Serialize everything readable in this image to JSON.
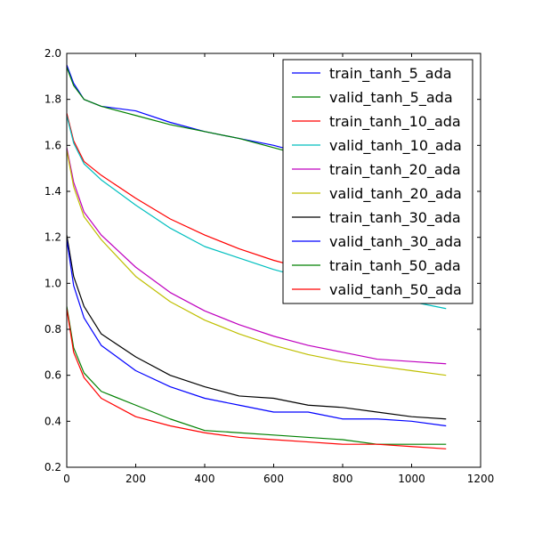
{
  "chart_data": {
    "type": "line",
    "title": "",
    "xlabel": "",
    "ylabel": "",
    "xlim": [
      0,
      1200
    ],
    "ylim": [
      0.2,
      2.0
    ],
    "xticks": [
      0,
      200,
      400,
      600,
      800,
      1000,
      1200
    ],
    "yticks": [
      0.2,
      0.4,
      0.6,
      0.8,
      1.0,
      1.2,
      1.4,
      1.6,
      1.8,
      2.0
    ],
    "xtick_labels": [
      "0",
      "200",
      "400",
      "600",
      "800",
      "1000",
      "1200"
    ],
    "ytick_labels": [
      "0.2",
      "0.4",
      "0.6",
      "0.8",
      "1.0",
      "1.2",
      "1.4",
      "1.6",
      "1.8",
      "2.0"
    ],
    "grid": false,
    "legend_position": "top-right",
    "x": [
      0,
      20,
      50,
      100,
      200,
      300,
      400,
      500,
      600,
      700,
      800,
      900,
      1000,
      1100
    ],
    "series": [
      {
        "name": "train_tanh_5_ada",
        "color": "#0000ff",
        "values": [
          1.95,
          1.87,
          1.8,
          1.77,
          1.75,
          1.7,
          1.66,
          1.63,
          1.6,
          1.56,
          1.52,
          1.49,
          1.46,
          1.44
        ]
      },
      {
        "name": "valid_tanh_5_ada",
        "color": "#008000",
        "values": [
          1.94,
          1.86,
          1.8,
          1.77,
          1.73,
          1.69,
          1.66,
          1.63,
          1.59,
          1.55,
          1.51,
          1.48,
          1.45,
          1.43
        ]
      },
      {
        "name": "train_tanh_10_ada",
        "color": "#ff0000",
        "values": [
          1.74,
          1.62,
          1.53,
          1.47,
          1.37,
          1.28,
          1.21,
          1.15,
          1.1,
          1.06,
          1.03,
          1.0,
          0.98,
          0.96
        ]
      },
      {
        "name": "valid_tanh_10_ada",
        "color": "#00bfbf",
        "values": [
          1.73,
          1.61,
          1.52,
          1.45,
          1.34,
          1.24,
          1.16,
          1.11,
          1.06,
          1.02,
          0.99,
          0.95,
          0.92,
          0.89
        ]
      },
      {
        "name": "train_tanh_20_ada",
        "color": "#bf00bf",
        "values": [
          1.59,
          1.44,
          1.31,
          1.21,
          1.07,
          0.96,
          0.88,
          0.82,
          0.77,
          0.73,
          0.7,
          0.67,
          0.66,
          0.65
        ]
      },
      {
        "name": "valid_tanh_20_ada",
        "color": "#bfbf00",
        "values": [
          1.58,
          1.42,
          1.29,
          1.19,
          1.03,
          0.92,
          0.84,
          0.78,
          0.73,
          0.69,
          0.66,
          0.64,
          0.62,
          0.6
        ]
      },
      {
        "name": "train_tanh_30_ada",
        "color": "#000000",
        "values": [
          1.21,
          1.03,
          0.9,
          0.78,
          0.68,
          0.6,
          0.55,
          0.51,
          0.5,
          0.47,
          0.46,
          0.44,
          0.42,
          0.41
        ]
      },
      {
        "name": "valid_tanh_30_ada",
        "color": "#0000ff",
        "values": [
          1.19,
          0.99,
          0.85,
          0.73,
          0.62,
          0.55,
          0.5,
          0.47,
          0.44,
          0.44,
          0.41,
          0.41,
          0.4,
          0.38
        ]
      },
      {
        "name": "train_tanh_50_ada",
        "color": "#008000",
        "values": [
          0.9,
          0.72,
          0.61,
          0.53,
          0.47,
          0.41,
          0.36,
          0.35,
          0.34,
          0.33,
          0.32,
          0.3,
          0.3,
          0.3
        ]
      },
      {
        "name": "valid_tanh_50_ada",
        "color": "#ff0000",
        "values": [
          0.89,
          0.7,
          0.59,
          0.5,
          0.42,
          0.38,
          0.35,
          0.33,
          0.32,
          0.31,
          0.3,
          0.3,
          0.29,
          0.28
        ]
      }
    ]
  }
}
